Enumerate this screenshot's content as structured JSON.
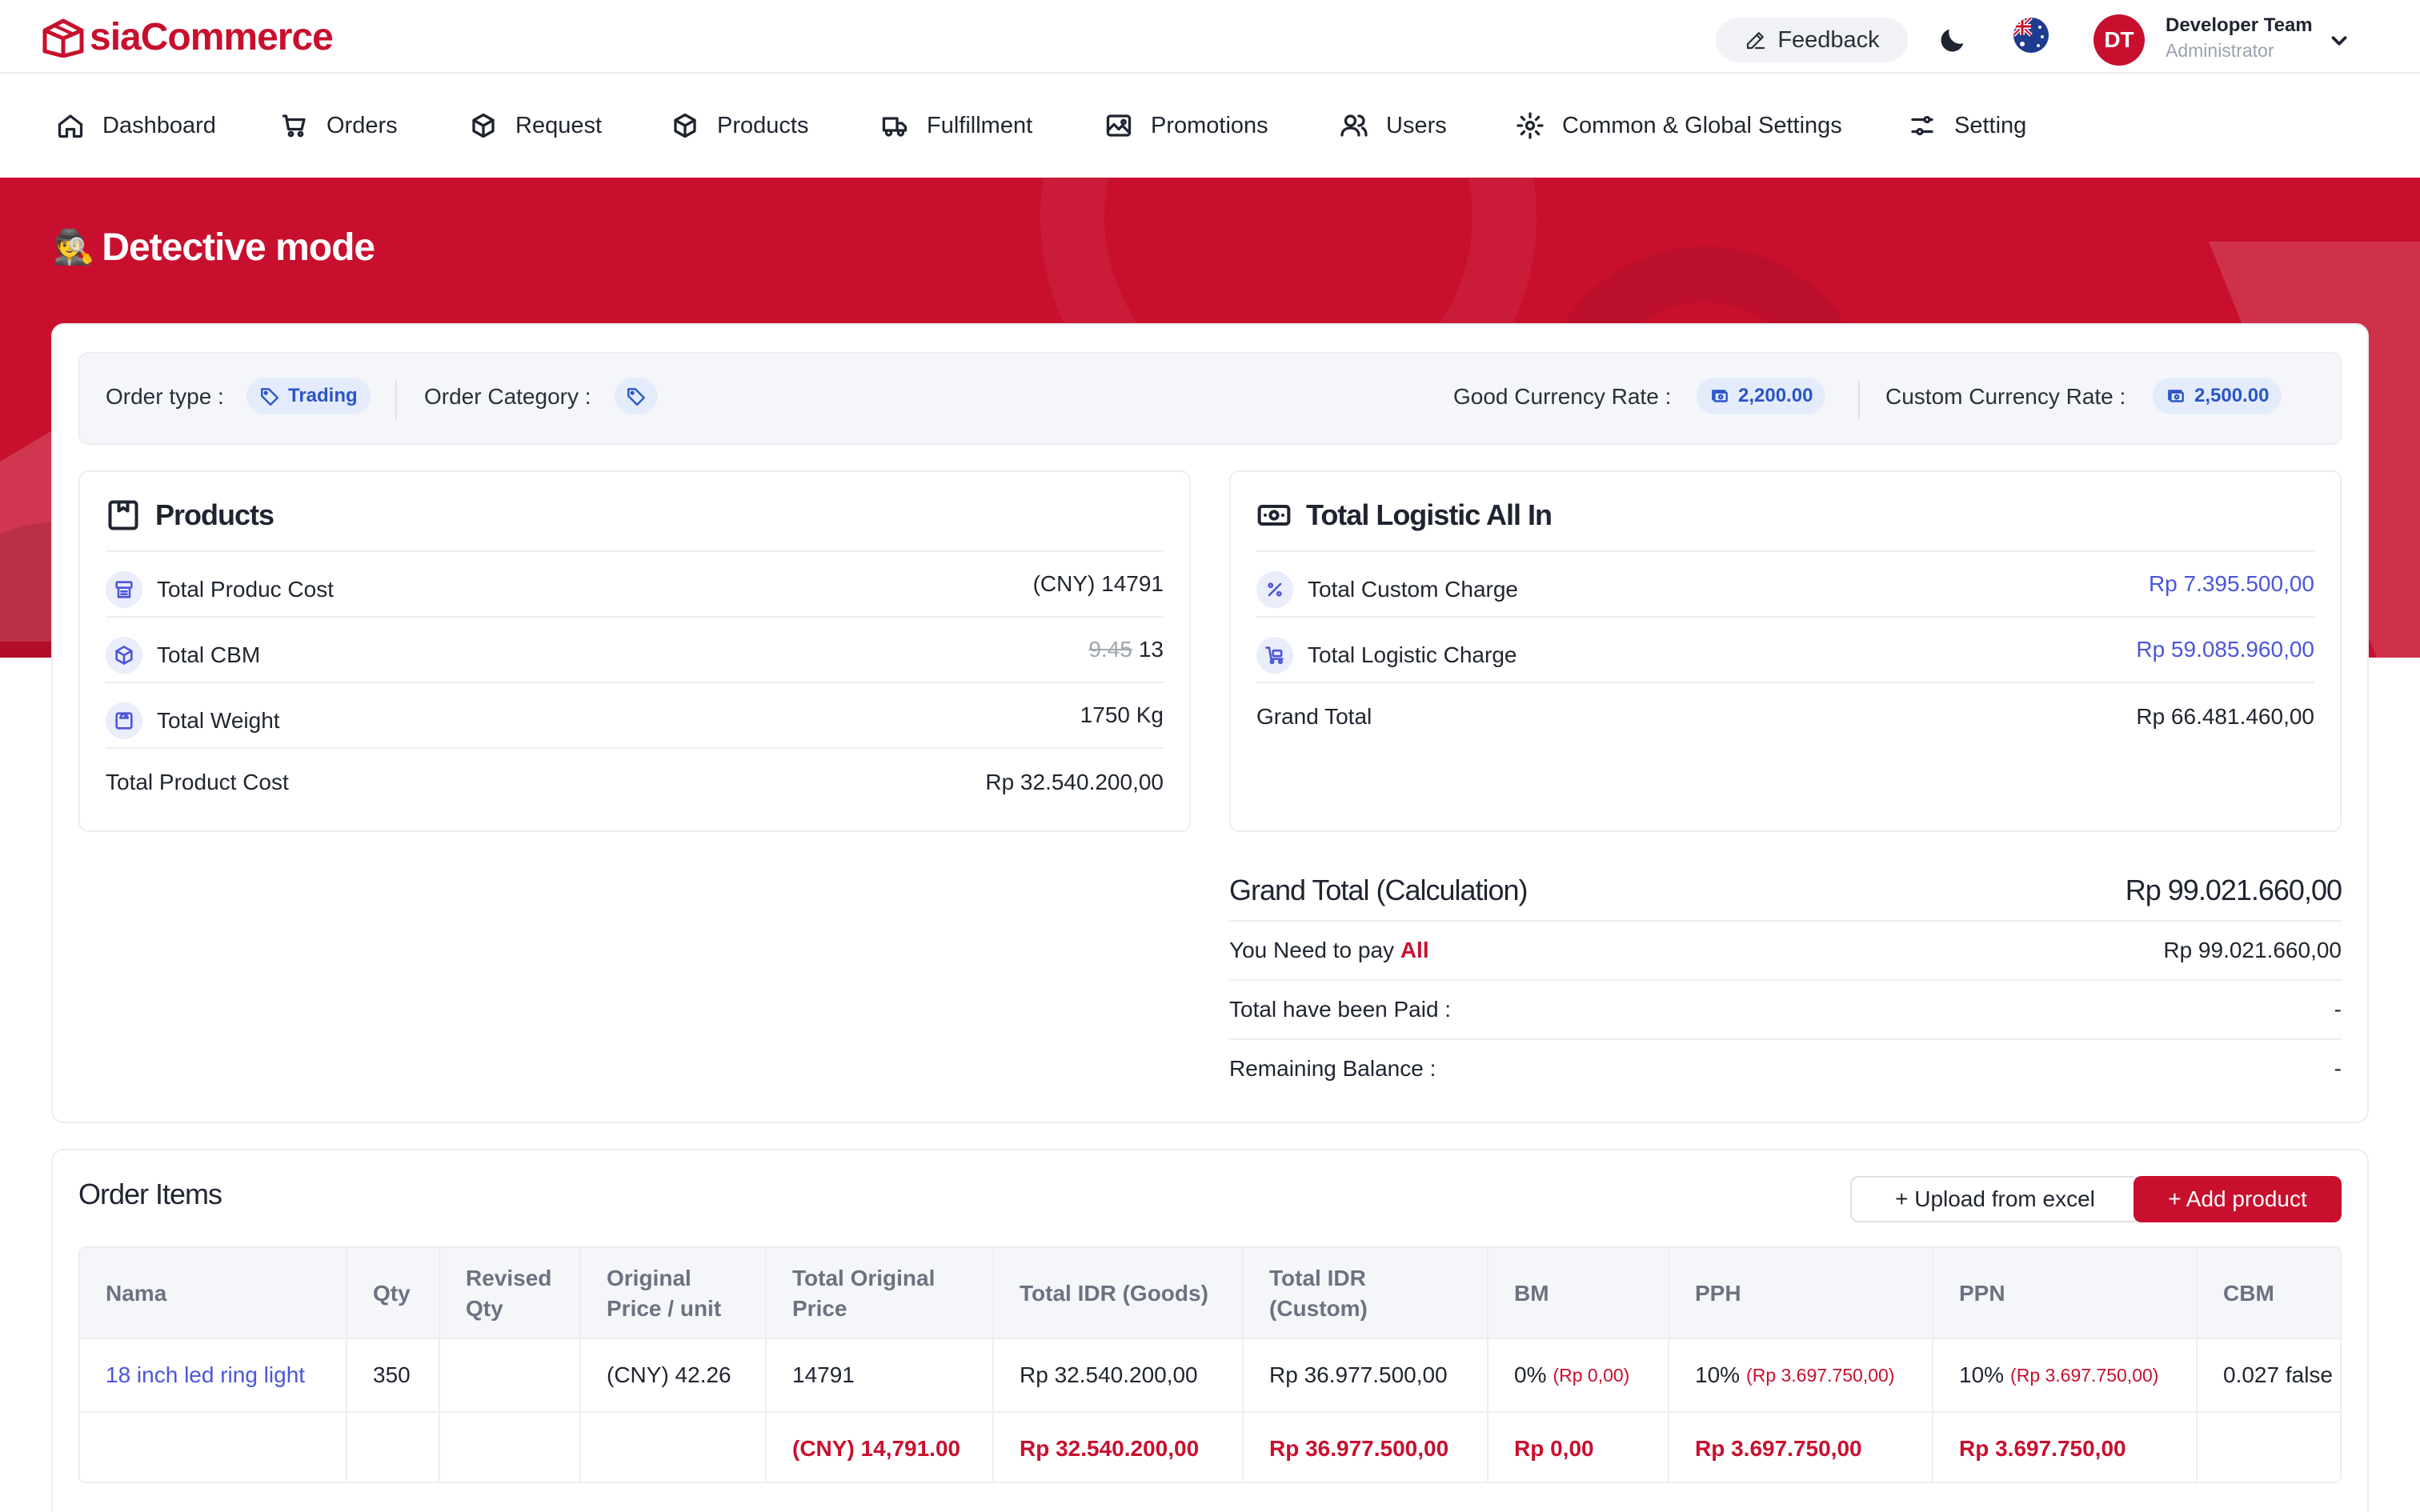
{
  "header": {
    "logo_text": "siaCommerce",
    "feedback_label": "Feedback",
    "user": {
      "initials": "DT",
      "name": "Developer Team",
      "role": "Administrator"
    }
  },
  "nav": {
    "items": [
      {
        "label": "Dashboard",
        "icon": "home-icon"
      },
      {
        "label": "Orders",
        "icon": "cart-icon"
      },
      {
        "label": "Request",
        "icon": "box-icon"
      },
      {
        "label": "Products",
        "icon": "box-icon"
      },
      {
        "label": "Fulfillment",
        "icon": "truck-icon"
      },
      {
        "label": "Promotions",
        "icon": "image-icon"
      },
      {
        "label": "Users",
        "icon": "users-icon"
      },
      {
        "label": "Common & Global Settings",
        "icon": "gear-icon"
      },
      {
        "label": "Setting",
        "icon": "sliders-icon"
      }
    ]
  },
  "hero": {
    "emoji": "🕵️",
    "title": "Detective mode"
  },
  "order_info": {
    "order_type_label": "Order type :",
    "order_type_value": "Trading",
    "order_category_label": "Order Category :",
    "good_rate_label": "Good Currency Rate :",
    "good_rate_value": "2,200.00",
    "custom_rate_label": "Custom Currency Rate :",
    "custom_rate_value": "2,500.00"
  },
  "products_panel": {
    "title": "Products",
    "rows": [
      {
        "label": "Total Produc Cost",
        "value": "(CNY) 14791"
      },
      {
        "label": "Total CBM",
        "old_value": "9.45",
        "value": "13"
      },
      {
        "label": "Total Weight",
        "value": "1750 Kg"
      }
    ],
    "total_label": "Total Product Cost",
    "total_value": "Rp 32.540.200,00"
  },
  "logistic_panel": {
    "title": "Total Logistic All In",
    "rows": [
      {
        "label": "Total Custom Charge",
        "value": "Rp 7.395.500,00"
      },
      {
        "label": "Total Logistic Charge",
        "value": "Rp 59.085.960,00"
      }
    ],
    "total_label": "Grand Total",
    "total_value": "Rp 66.481.460,00"
  },
  "grand_total": {
    "label": "Grand Total (Calculation)",
    "value": "Rp 99.021.660,00",
    "need_to_pay_label": "You Need to pay",
    "need_to_pay_scope": "All",
    "need_to_pay_value": "Rp 99.021.660,00",
    "paid_label": "Total have been Paid :",
    "paid_value": "-",
    "remaining_label": "Remaining Balance :",
    "remaining_value": "-"
  },
  "order_items": {
    "title": "Order Items",
    "upload_label": "+ Upload from excel",
    "add_label": "+ Add product",
    "columns": [
      "Nama",
      "Qty",
      "Revised Qty",
      "Original Price / unit",
      "Total Original Price",
      "Total IDR (Goods)",
      "Total IDR (Custom)",
      "BM",
      "PPH",
      "PPN",
      "CBM"
    ],
    "rows": [
      {
        "nama": "18 inch led ring light",
        "qty": "350",
        "revised_qty": "",
        "original_price": "(CNY) 42.26",
        "total_original": "14791",
        "total_idr_goods": "Rp 32.540.200,00",
        "total_idr_custom": "Rp 36.977.500,00",
        "bm": "0%",
        "bm_amount": "(Rp 0,00)",
        "pph": "10%",
        "pph_amount": "(Rp 3.697.750,00)",
        "ppn": "10%",
        "ppn_amount": "(Rp 3.697.750,00)",
        "cbm": "0.027 false"
      }
    ],
    "totals": {
      "total_original": "(CNY) 14,791.00",
      "total_idr_goods": "Rp 32.540.200,00",
      "total_idr_custom": "Rp 36.977.500,00",
      "bm": "Rp 0,00",
      "pph": "Rp 3.697.750,00",
      "ppn": "Rp 3.697.750,00"
    }
  }
}
